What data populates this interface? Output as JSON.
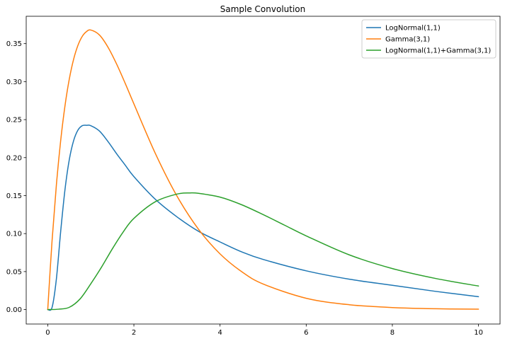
{
  "chart_data": {
    "type": "line",
    "title": "Sample Convolution",
    "xlabel": "",
    "ylabel": "",
    "xlim": [
      -0.5,
      10.5
    ],
    "ylim": [
      -0.019,
      0.386
    ],
    "xticks": [
      0,
      2,
      4,
      6,
      8,
      10
    ],
    "yticks": [
      0.0,
      0.05,
      0.1,
      0.15,
      0.2,
      0.25,
      0.3,
      0.35
    ],
    "xtick_labels": [
      "0",
      "2",
      "4",
      "6",
      "8",
      "10"
    ],
    "ytick_labels": [
      "0.00",
      "0.05",
      "0.10",
      "0.15",
      "0.20",
      "0.25",
      "0.30",
      "0.35"
    ],
    "grid": false,
    "legend_position": "top-right",
    "series": [
      {
        "name": "LogNormal(1,1)",
        "color": "#1f77b4",
        "x": [
          0,
          0.1,
          0.2,
          0.3,
          0.4,
          0.5,
          0.6,
          0.7,
          0.8,
          0.9,
          1.0,
          1.2,
          1.4,
          1.6,
          1.8,
          2.0,
          2.5,
          3.0,
          3.5,
          4.0,
          4.5,
          5.0,
          6.0,
          7.0,
          8.0,
          9.0,
          10.0
        ],
        "y": [
          0.0,
          0.0028,
          0.04,
          0.1027,
          0.1578,
          0.1972,
          0.2222,
          0.2361,
          0.242,
          0.2425,
          0.242,
          0.235,
          0.221,
          0.205,
          0.19,
          0.175,
          0.145,
          0.122,
          0.103,
          0.089,
          0.076,
          0.066,
          0.051,
          0.04,
          0.032,
          0.024,
          0.017
        ]
      },
      {
        "name": "Gamma(3,1)",
        "color": "#ff7f0e",
        "x": [
          0,
          0.1,
          0.2,
          0.3,
          0.4,
          0.5,
          0.6,
          0.7,
          0.8,
          0.9,
          1.0,
          1.2,
          1.4,
          1.6,
          1.8,
          2.0,
          2.5,
          3.0,
          3.5,
          4.0,
          4.5,
          5.0,
          6.0,
          7.0,
          8.0,
          9.0,
          10.0
        ],
        "y": [
          0.0,
          0.0905,
          0.1637,
          0.2222,
          0.2681,
          0.3033,
          0.3293,
          0.3476,
          0.3595,
          0.3659,
          0.3679,
          0.3614,
          0.3452,
          0.323,
          0.2975,
          0.2707,
          0.2052,
          0.1494,
          0.1057,
          0.0733,
          0.05,
          0.0337,
          0.0149,
          0.0064,
          0.0027,
          0.0011,
          0.0005
        ]
      },
      {
        "name": "LogNormal(1,1)+Gamma(3,1)",
        "color": "#2ca02c",
        "x": [
          0,
          0.25,
          0.5,
          0.75,
          1.0,
          1.25,
          1.5,
          1.75,
          2.0,
          2.5,
          3.0,
          3.3,
          3.5,
          4.0,
          4.5,
          5.0,
          5.5,
          6.0,
          7.0,
          8.0,
          9.0,
          10.0
        ],
        "y": [
          0.0,
          0.0005,
          0.003,
          0.014,
          0.034,
          0.056,
          0.08,
          0.102,
          0.12,
          0.142,
          0.152,
          0.1535,
          0.153,
          0.148,
          0.138,
          0.125,
          0.111,
          0.097,
          0.072,
          0.054,
          0.041,
          0.031
        ]
      }
    ]
  }
}
